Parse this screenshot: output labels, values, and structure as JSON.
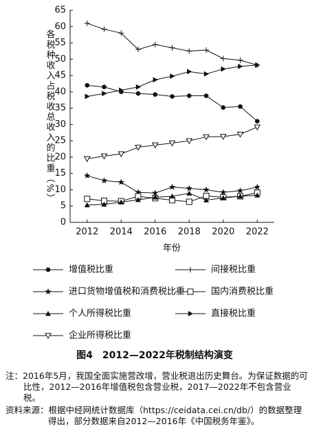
{
  "chart_data": {
    "type": "line",
    "title": "图4　2012—2022年税制结构演变",
    "x_label": "年份",
    "y_label": "各税种收入占税收总收入的比重（%）",
    "x": [
      2012,
      2013,
      2014,
      2015,
      2016,
      2017,
      2018,
      2019,
      2020,
      2021,
      2022
    ],
    "xlim": [
      2011,
      2023
    ],
    "xticks": [
      2012,
      2014,
      2016,
      2018,
      2020,
      2022
    ],
    "ylim": [
      0,
      65
    ],
    "yticks": [
      0,
      5,
      10,
      15,
      20,
      25,
      30,
      35,
      40,
      45,
      50,
      55,
      60,
      65
    ],
    "grid": false,
    "series": [
      {
        "name": "增值税比重",
        "color": "#111111",
        "marker": "circle",
        "values": [
          42,
          41.5,
          40,
          39.5,
          39.2,
          38.6,
          38.8,
          38.8,
          35.2,
          35.5,
          31
        ]
      },
      {
        "name": "间接税比重",
        "color": "#111111",
        "marker": "plus",
        "values": [
          61,
          59.2,
          58,
          53,
          54.5,
          53.5,
          52.5,
          52.8,
          50.2,
          49.7,
          48.2
        ]
      },
      {
        "name": "进口货物增值税和消费税比重",
        "color": "#111111",
        "marker": "star",
        "values": [
          14.3,
          12.8,
          12.3,
          9.2,
          9,
          10.8,
          10.4,
          10,
          9.2,
          9.7,
          10.8
        ]
      },
      {
        "name": "国内消费税比重",
        "color": "#111111",
        "marker": "square",
        "values": [
          7.2,
          6.6,
          6.5,
          8,
          7.4,
          6.8,
          6.3,
          8.1,
          7.7,
          8,
          9.1
        ]
      },
      {
        "name": "个人所得税比重",
        "color": "#111111",
        "marker": "triangle",
        "values": [
          5.3,
          5.5,
          6.2,
          6.9,
          7.7,
          8,
          8.9,
          6.8,
          7.5,
          8,
          8.3
        ]
      },
      {
        "name": "直接税比重",
        "color": "#111111",
        "marker": "triangle-right",
        "values": [
          38.6,
          39.5,
          40.5,
          41.5,
          43.7,
          44.8,
          46.2,
          45.5,
          47,
          47.8,
          48.2
        ]
      },
      {
        "name": "企业所得税比重",
        "color": "#111111",
        "marker": "triangle-down",
        "values": [
          19.5,
          20.3,
          21,
          23,
          23.7,
          24.3,
          25,
          26.2,
          26.3,
          27,
          29.2
        ]
      }
    ]
  },
  "notes": [
    "注：2016年5月，我国全面实施营改增，营业税退出历史舞台。为保证数据的可比性，2012—2016年增值税包含营业税，2017—2022年不包含营业税。",
    "资料来源：根据中经网统计数据库（https://ceidata.cei.cn/db/）的数据整理得出，部分数据来自2012—2016年《中国税务年鉴》。"
  ]
}
